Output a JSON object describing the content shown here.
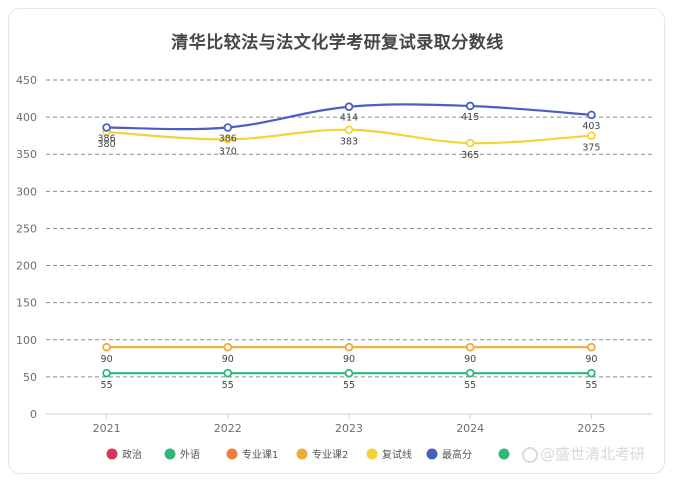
{
  "chart_data": {
    "type": "line",
    "title": "清华比较法与法文化学考研复试录取分数线",
    "categories": [
      "2021",
      "2022",
      "2023",
      "2024",
      "2025"
    ],
    "ylim": [
      0,
      450
    ],
    "yticks": [
      "0",
      "50",
      "100",
      "150",
      "200",
      "250",
      "300",
      "350",
      "400",
      "450"
    ],
    "grid": true,
    "legend_position": "bottom",
    "series": [
      {
        "name": "政治",
        "color": "#d6365b",
        "values": [
          null,
          null,
          null,
          null,
          null
        ],
        "labels": []
      },
      {
        "name": "外语",
        "color": "#2eb87a",
        "values": [
          55,
          55,
          55,
          55,
          55
        ],
        "labels": [
          "55",
          "55",
          "55",
          "55",
          "55"
        ]
      },
      {
        "name": "专业课1",
        "color": "#ee7d3a",
        "values": [
          null,
          null,
          null,
          null,
          null
        ],
        "labels": []
      },
      {
        "name": "专业课2",
        "color": "#eeaa3c",
        "values": [
          90,
          90,
          90,
          90,
          90
        ],
        "labels": [
          "90",
          "90",
          "90",
          "90",
          "90"
        ]
      },
      {
        "name": "复试线",
        "color": "#f2d43a",
        "values": [
          380,
          370,
          383,
          365,
          375
        ],
        "labels": [
          "380",
          "370",
          "383",
          "365",
          "375"
        ]
      },
      {
        "name": "最高分",
        "color": "#4a5fc1",
        "values": [
          386,
          386,
          414,
          415,
          403
        ],
        "labels": [
          "386",
          "386",
          "414",
          "415",
          "403"
        ]
      },
      {
        "name": "",
        "color": "#2eb87a",
        "values": [
          null,
          null,
          null,
          null,
          null
        ],
        "labels": []
      }
    ]
  },
  "watermark": {
    "text": "@盛世清北考研"
  }
}
